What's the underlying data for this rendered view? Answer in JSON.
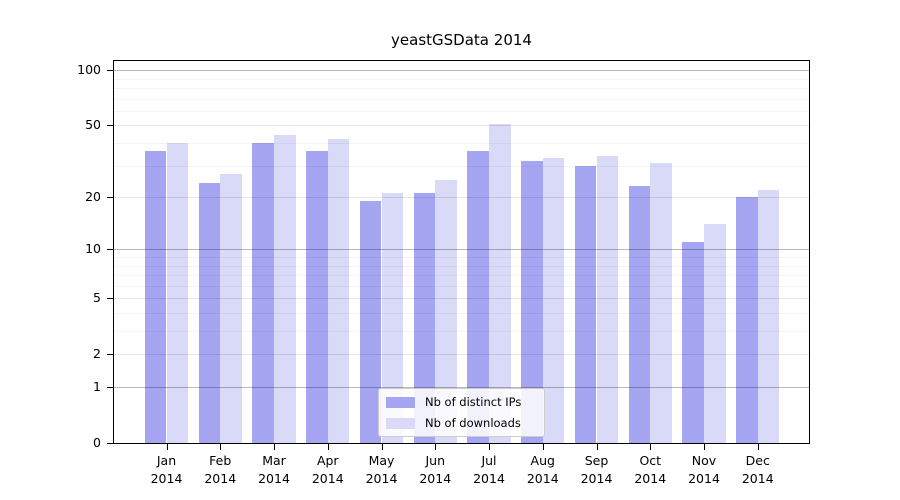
{
  "chart_data": {
    "type": "bar",
    "title": "yeastGSData 2014",
    "categories": [
      "Jan 2014",
      "Feb 2014",
      "Mar 2014",
      "Apr 2014",
      "May 2014",
      "Jun 2014",
      "Jul 2014",
      "Aug 2014",
      "Sep 2014",
      "Oct 2014",
      "Nov 2014",
      "Dec 2014"
    ],
    "month_labels": [
      "Jan",
      "Feb",
      "Mar",
      "Apr",
      "May",
      "Jun",
      "Jul",
      "Aug",
      "Sep",
      "Oct",
      "Nov",
      "Dec"
    ],
    "year_label": "2014",
    "series": [
      {
        "name": "Nb of distinct IPs",
        "color": "#a5a5f1",
        "values": [
          36,
          24,
          40,
          36,
          19,
          21,
          36,
          32,
          30,
          23,
          11,
          20
        ]
      },
      {
        "name": "Nb of downloads",
        "color": "#d9d9f8",
        "values": [
          40,
          27,
          44,
          42,
          21,
          25,
          51,
          33,
          34,
          31,
          14,
          22
        ]
      }
    ],
    "xlabel": "",
    "ylabel": "",
    "y_scale": "log1p",
    "ylim": [
      0,
      112
    ],
    "y_axis_max": 112,
    "y_tick_values": [
      100,
      50,
      20,
      10,
      5,
      2,
      1,
      0
    ],
    "y_tick_labels": [
      "100",
      "50",
      "20",
      "10",
      "5",
      "2",
      "1",
      "0"
    ],
    "gridlines": {
      "on": true,
      "decade": [
        1,
        10,
        100
      ],
      "major": [
        2,
        5,
        20,
        50
      ],
      "minor": [
        3,
        4,
        6,
        7,
        8,
        9,
        30,
        40,
        60,
        70,
        80,
        90
      ]
    },
    "legend_position": "lower center",
    "colors": {
      "background": "#ffffff",
      "axis": "#000000",
      "legend_border": "#cccccc"
    }
  }
}
